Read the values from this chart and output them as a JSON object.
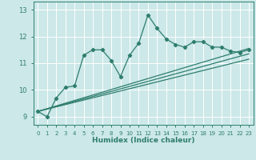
{
  "xlabel": "Humidex (Indice chaleur)",
  "bg_color": "#cce8e8",
  "grid_color": "#ffffff",
  "line_color": "#2e7d6e",
  "xlim": [
    -0.5,
    23.5
  ],
  "ylim": [
    8.7,
    13.3
  ],
  "x_ticks": [
    0,
    1,
    2,
    3,
    4,
    5,
    6,
    7,
    8,
    9,
    10,
    11,
    12,
    13,
    14,
    15,
    16,
    17,
    18,
    19,
    20,
    21,
    22,
    23
  ],
  "y_ticks": [
    9,
    10,
    11,
    12,
    13
  ],
  "series1_x": [
    0,
    1,
    2,
    3,
    4,
    5,
    6,
    7,
    8,
    9,
    10,
    11,
    12,
    13,
    14,
    15,
    16,
    17,
    18,
    19,
    20,
    21,
    22,
    23
  ],
  "series1_y": [
    9.2,
    9.0,
    9.7,
    10.1,
    10.15,
    11.3,
    11.5,
    11.5,
    11.1,
    10.5,
    11.3,
    11.75,
    12.8,
    12.3,
    11.9,
    11.7,
    11.6,
    11.8,
    11.8,
    11.6,
    11.6,
    11.45,
    11.4,
    11.5
  ],
  "series2_x": [
    0,
    23
  ],
  "series2_y": [
    9.2,
    11.55
  ],
  "series3_x": [
    0,
    23
  ],
  "series3_y": [
    9.2,
    11.35
  ],
  "series4_x": [
    0,
    23
  ],
  "series4_y": [
    9.2,
    11.15
  ]
}
